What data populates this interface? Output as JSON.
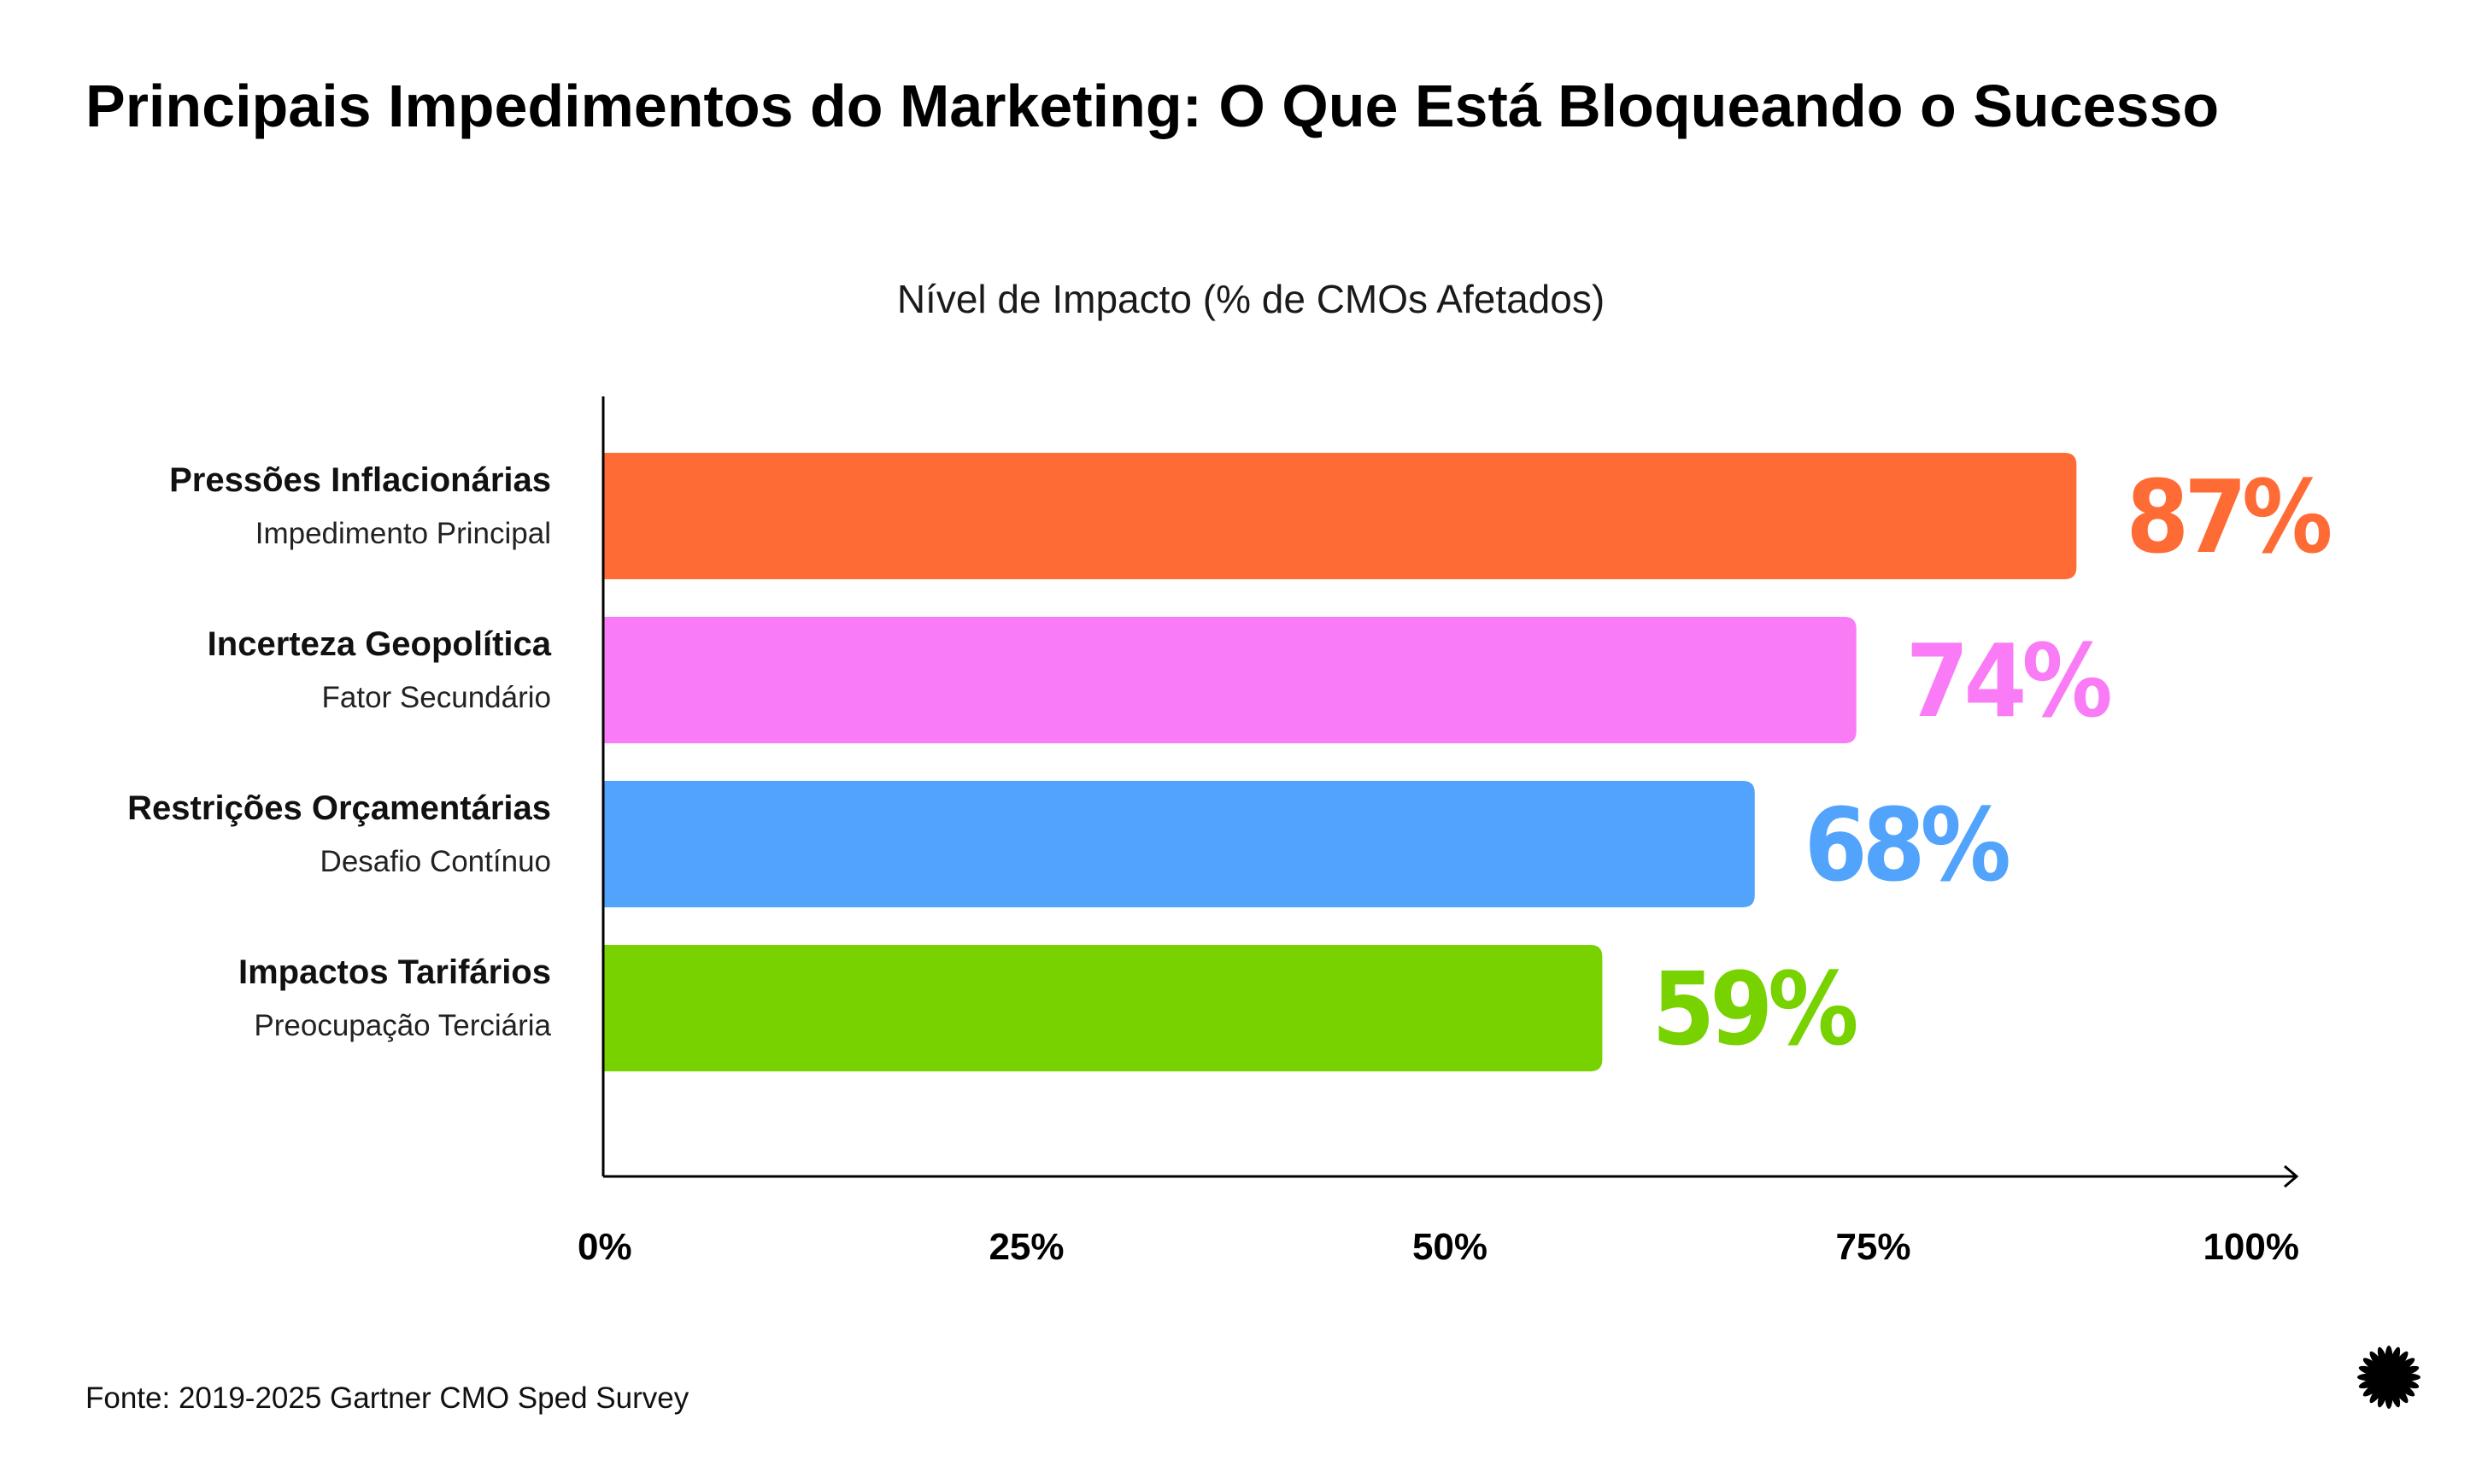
{
  "chart_data": {
    "type": "bar",
    "orientation": "horizontal",
    "title": "Principais Impedimentos do Marketing: O Que Está Bloqueando o Sucesso",
    "subtitle": "Nível de Impacto (% de CMOs Afetados)",
    "categories": [
      "Pressões Inflacionárias",
      "Incerteza Geopolítica",
      "Restrições Orçamentárias",
      "Impactos Tarifários"
    ],
    "category_subtitles": [
      "Impedimento Principal",
      "Fator Secundário",
      "Desafio Contínuo",
      "Preocupação Terciária"
    ],
    "values": [
      87,
      74,
      68,
      59
    ],
    "value_labels": [
      "87%",
      "74%",
      "68%",
      "59%"
    ],
    "colors": [
      "#ff6b35",
      "#f97cf6",
      "#52a3fc",
      "#77d200"
    ],
    "xlim": [
      0,
      100
    ],
    "x_ticks": [
      0,
      25,
      50,
      75,
      100
    ],
    "x_tick_labels": [
      "0%",
      "25%",
      "50%",
      "75%",
      "100%"
    ],
    "grid": false,
    "source": "Fonte: 2019-2025 Gartner CMO Sped Survey"
  }
}
